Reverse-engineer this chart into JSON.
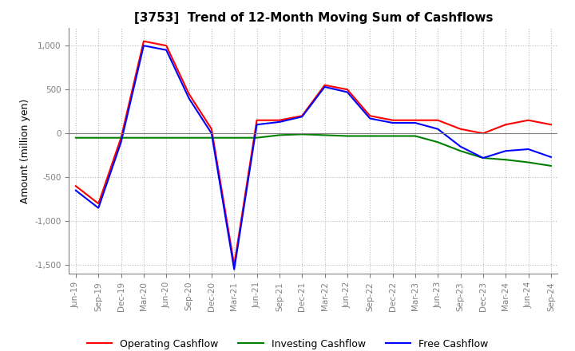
{
  "title": "[3753]  Trend of 12-Month Moving Sum of Cashflows",
  "ylabel": "Amount (million yen)",
  "x_labels": [
    "Jun-19",
    "Sep-19",
    "Dec-19",
    "Mar-20",
    "Jun-20",
    "Sep-20",
    "Dec-20",
    "Mar-21",
    "Jun-21",
    "Sep-21",
    "Dec-21",
    "Mar-22",
    "Jun-22",
    "Sep-22",
    "Dec-22",
    "Mar-23",
    "Jun-23",
    "Sep-23",
    "Dec-23",
    "Mar-24",
    "Jun-24",
    "Sep-24"
  ],
  "operating": [
    -600,
    -800,
    -50,
    1050,
    1000,
    450,
    50,
    -1500,
    150,
    150,
    200,
    550,
    500,
    200,
    150,
    150,
    150,
    50,
    0,
    100,
    150,
    100
  ],
  "investing": [
    -50,
    -50,
    -50,
    -50,
    -50,
    -50,
    -50,
    -50,
    -50,
    -20,
    -10,
    -20,
    -30,
    -30,
    -30,
    -30,
    -100,
    -200,
    -280,
    -300,
    -330,
    -370
  ],
  "free": [
    -650,
    -850,
    -100,
    1000,
    950,
    400,
    0,
    -1550,
    100,
    130,
    190,
    530,
    470,
    170,
    120,
    120,
    50,
    -150,
    -280,
    -200,
    -180,
    -270
  ],
  "operating_color": "#FF0000",
  "investing_color": "#008000",
  "free_color": "#0000FF",
  "ylim": [
    -1600,
    1200
  ],
  "yticks": [
    -1500,
    -1000,
    -500,
    0,
    500,
    1000
  ],
  "grid_color": "#BBBBBB",
  "bg_color": "#FFFFFF",
  "title_fontsize": 11,
  "legend_labels": [
    "Operating Cashflow",
    "Investing Cashflow",
    "Free Cashflow"
  ]
}
